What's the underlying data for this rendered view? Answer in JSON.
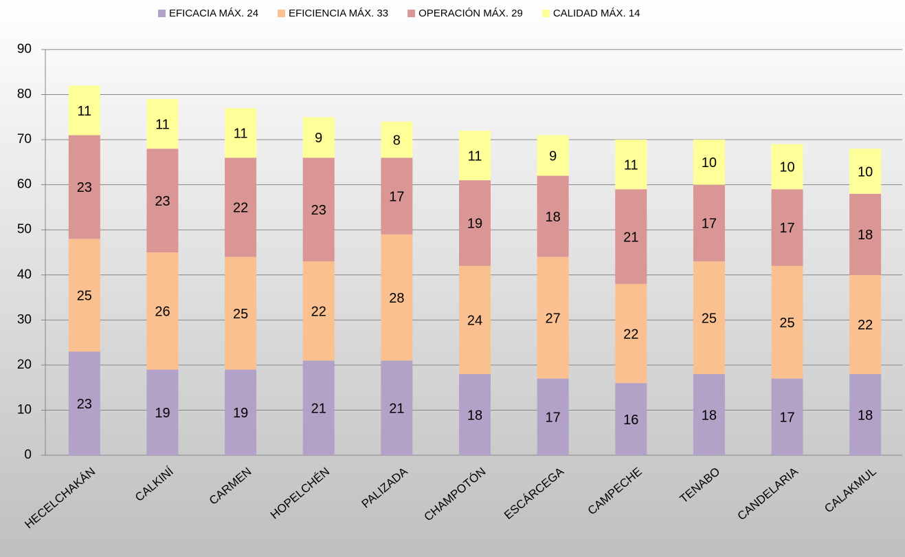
{
  "chart_data": {
    "type": "stacked_bar",
    "categories": [
      "HECELCHAKÁN",
      "CALKINÍ",
      "CARMEN",
      "HOPELCHÉN",
      "PALIZADA",
      "CHAMPOTÓN",
      "ESCÁRCEGA",
      "CAMPECHE",
      "TENABO",
      "CANDELARIA",
      "CALAKMUL"
    ],
    "series": [
      {
        "name": "EFICACIA MÁX. 24",
        "color": "#b3a2c7",
        "values": [
          23,
          19,
          19,
          21,
          21,
          18,
          17,
          16,
          18,
          17,
          18
        ]
      },
      {
        "name": "EFICIENCIA MÁX. 33",
        "color": "#fac090",
        "values": [
          25,
          26,
          25,
          22,
          28,
          24,
          27,
          22,
          25,
          25,
          22
        ]
      },
      {
        "name": "OPERACIÓN MÁX. 29",
        "color": "#d99694",
        "values": [
          23,
          23,
          22,
          23,
          17,
          19,
          18,
          21,
          17,
          17,
          18
        ]
      },
      {
        "name": "CALIDAD MÁX. 14",
        "color": "#ffff99",
        "values": [
          11,
          11,
          11,
          9,
          8,
          11,
          9,
          11,
          10,
          10,
          10
        ]
      }
    ],
    "ylim": [
      0,
      90
    ],
    "yticks": [
      0,
      10,
      20,
      30,
      40,
      50,
      60,
      70,
      80,
      90
    ],
    "grid": true,
    "legend": "top"
  }
}
